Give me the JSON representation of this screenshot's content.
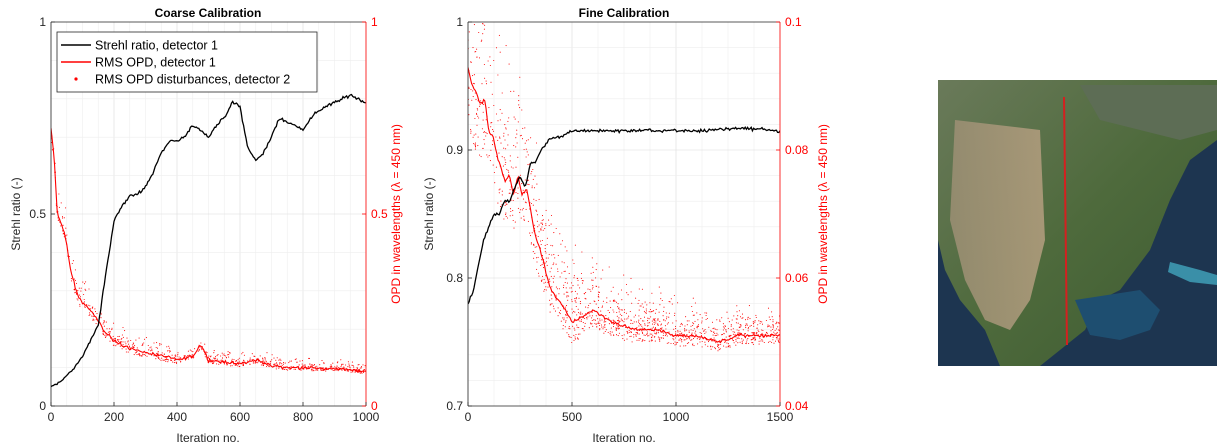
{
  "chart_data": [
    {
      "type": "line",
      "title": "Coarse Calibration",
      "xlabel": "Iteration no.",
      "ylabel_left": "Strehl ratio (-)",
      "ylabel_right": "OPD in wavelengths (λ = 450 nm)",
      "xlim": [
        0,
        1000
      ],
      "ylim_left": [
        0,
        1
      ],
      "ylim_right": [
        0,
        1
      ],
      "xticks": [
        "0",
        "200",
        "400",
        "600",
        "800",
        "1000"
      ],
      "yticks_left": [
        "0",
        "0.5",
        "1"
      ],
      "yticks_right": [
        "0",
        "0.5",
        "1"
      ],
      "grid": true,
      "legend_position": "top-left",
      "legend": [
        "Strehl ratio, detector 1",
        "RMS OPD, detector 1",
        "RMS OPD disturbances, detector 2"
      ],
      "colors": {
        "strehl": "#000000",
        "opd": "#ff0000",
        "disturbances": "#ff0000",
        "right_axis": "#ff0000"
      },
      "series": [
        {
          "name": "Strehl ratio, detector 1",
          "axis": "left",
          "x": [
            0,
            25,
            50,
            75,
            100,
            125,
            150,
            175,
            200,
            225,
            250,
            275,
            300,
            325,
            350,
            375,
            400,
            425,
            450,
            475,
            500,
            525,
            550,
            575,
            600,
            625,
            650,
            675,
            700,
            725,
            750,
            775,
            800,
            825,
            850,
            875,
            900,
            925,
            950,
            975,
            1000
          ],
          "values": [
            0.05,
            0.06,
            0.08,
            0.1,
            0.13,
            0.17,
            0.21,
            0.35,
            0.48,
            0.52,
            0.55,
            0.55,
            0.57,
            0.61,
            0.66,
            0.69,
            0.69,
            0.7,
            0.73,
            0.72,
            0.7,
            0.73,
            0.75,
            0.79,
            0.78,
            0.67,
            0.64,
            0.66,
            0.7,
            0.75,
            0.74,
            0.73,
            0.72,
            0.75,
            0.77,
            0.78,
            0.79,
            0.8,
            0.81,
            0.8,
            0.79
          ]
        },
        {
          "name": "RMS OPD, detector 1",
          "axis": "right",
          "x": [
            0,
            10,
            20,
            30,
            40,
            50,
            60,
            70,
            80,
            90,
            100,
            125,
            150,
            175,
            200,
            225,
            250,
            275,
            300,
            325,
            350,
            400,
            450,
            475,
            500,
            550,
            600,
            650,
            700,
            750,
            800,
            850,
            900,
            950,
            1000
          ],
          "values": [
            0.72,
            0.65,
            0.5,
            0.48,
            0.46,
            0.42,
            0.36,
            0.33,
            0.3,
            0.28,
            0.27,
            0.25,
            0.22,
            0.19,
            0.17,
            0.16,
            0.15,
            0.145,
            0.14,
            0.135,
            0.13,
            0.12,
            0.13,
            0.16,
            0.12,
            0.115,
            0.11,
            0.12,
            0.105,
            0.1,
            0.1,
            0.098,
            0.097,
            0.095,
            0.09
          ]
        },
        {
          "name": "RMS OPD disturbances, detector 2",
          "axis": "right",
          "style": "dots",
          "x": [
            0,
            1000
          ],
          "values": [
            0.2,
            0.09
          ]
        }
      ]
    },
    {
      "type": "line",
      "title": "Fine Calibration",
      "xlabel": "Iteration no.",
      "ylabel_left": "Strehl ratio (-)",
      "ylabel_right": "OPD in wavelengths (λ = 450 nm)",
      "xlim": [
        0,
        1500
      ],
      "ylim_left": [
        0.7,
        1
      ],
      "ylim_right": [
        0.04,
        0.1
      ],
      "xticks": [
        "0",
        "500",
        "1000",
        "1500"
      ],
      "yticks_left": [
        "0.7",
        "0.8",
        "0.9",
        "1"
      ],
      "yticks_right": [
        "0.04",
        "0.06",
        "0.08",
        "0.1"
      ],
      "grid": true,
      "colors": {
        "strehl": "#000000",
        "opd": "#ff0000",
        "disturbances": "#ff0000",
        "right_axis": "#ff0000"
      },
      "series": [
        {
          "name": "Strehl ratio, detector 1",
          "axis": "left",
          "x": [
            0,
            25,
            50,
            75,
            100,
            125,
            150,
            175,
            200,
            225,
            250,
            275,
            300,
            325,
            350,
            375,
            400,
            450,
            500,
            550,
            600,
            700,
            800,
            900,
            1000,
            1100,
            1200,
            1300,
            1400,
            1500
          ],
          "values": [
            0.78,
            0.79,
            0.81,
            0.83,
            0.84,
            0.85,
            0.85,
            0.86,
            0.86,
            0.87,
            0.88,
            0.87,
            0.89,
            0.89,
            0.9,
            0.905,
            0.91,
            0.91,
            0.915,
            0.915,
            0.915,
            0.915,
            0.915,
            0.915,
            0.915,
            0.915,
            0.916,
            0.917,
            0.916,
            0.915
          ]
        },
        {
          "name": "RMS OPD, detector 1",
          "axis": "right",
          "x": [
            0,
            20,
            40,
            60,
            80,
            100,
            120,
            140,
            160,
            180,
            200,
            220,
            240,
            260,
            280,
            300,
            320,
            340,
            360,
            380,
            400,
            450,
            500,
            550,
            600,
            700,
            800,
            900,
            1000,
            1100,
            1200,
            1300,
            1400,
            1500
          ],
          "values": [
            0.093,
            0.09,
            0.089,
            0.087,
            0.088,
            0.083,
            0.082,
            0.079,
            0.077,
            0.075,
            0.076,
            0.073,
            0.076,
            0.073,
            0.074,
            0.071,
            0.067,
            0.065,
            0.063,
            0.06,
            0.058,
            0.056,
            0.053,
            0.054,
            0.055,
            0.053,
            0.052,
            0.052,
            0.051,
            0.051,
            0.05,
            0.051,
            0.051,
            0.051
          ]
        },
        {
          "name": "RMS OPD disturbances, detector 2",
          "axis": "right",
          "style": "dots",
          "x": [
            0,
            1500
          ],
          "values": [
            0.1,
            0.048
          ]
        }
      ]
    }
  ],
  "map_image": {
    "icon": "north-america-satellite-map",
    "line_color": "#d42020"
  }
}
